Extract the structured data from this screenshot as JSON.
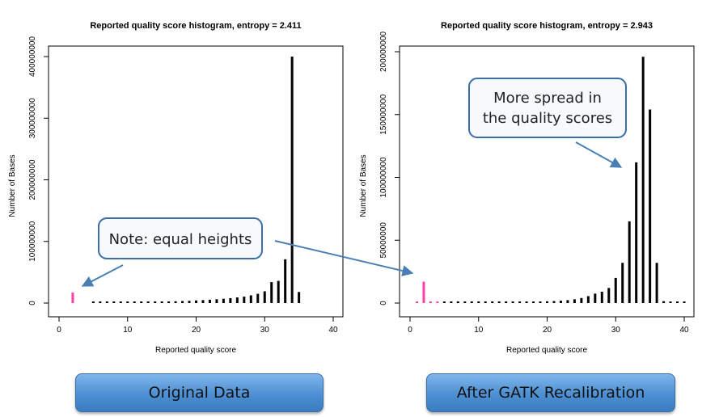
{
  "colors": {
    "bar": "#000000",
    "highlight_bar": "#ff3fa4",
    "callout_border": "#3a6ea5",
    "arrow": "#4a7fb5",
    "caption_fill": "#4d8fd2"
  },
  "chart_data": [
    {
      "type": "bar",
      "title": "Reported quality score histogram, entropy =  2.411",
      "xlabel": "Reported quality score",
      "ylabel": "Number of Bases",
      "xlim": [
        0,
        40
      ],
      "ylim": [
        0,
        400000000
      ],
      "xticks": [
        0,
        10,
        20,
        30,
        40
      ],
      "yticks": [
        0,
        100000000,
        200000000,
        300000000,
        400000000
      ],
      "xtick_labels": [
        "0",
        "10",
        "20",
        "30",
        "40"
      ],
      "ytick_labels": [
        "0",
        "100000000",
        "200000000",
        "300000000",
        "400000000"
      ],
      "grid": false,
      "highlight": [
        2
      ],
      "x": [
        2,
        5,
        6,
        7,
        8,
        9,
        10,
        11,
        12,
        13,
        14,
        15,
        16,
        17,
        18,
        19,
        20,
        21,
        22,
        23,
        24,
        25,
        26,
        27,
        28,
        29,
        30,
        31,
        32,
        33,
        34,
        35
      ],
      "values": [
        17000000,
        500000,
        600000,
        700000,
        800000,
        900000,
        1000000,
        1100000,
        1300000,
        1500000,
        1800000,
        2100000,
        2500000,
        2900000,
        3300000,
        3700000,
        4200000,
        4800000,
        5400000,
        6100000,
        7000000,
        8000000,
        9200000,
        10500000,
        12500000,
        15000000,
        19000000,
        34000000,
        36000000,
        71000000,
        400000000,
        18000000
      ]
    },
    {
      "type": "bar",
      "title": "Reported quality score histogram, entropy =  2.943",
      "xlabel": "Reported quality score",
      "ylabel": "Number of Bases",
      "xlim": [
        0,
        40
      ],
      "ylim": [
        0,
        200000000
      ],
      "xticks": [
        0,
        10,
        20,
        30,
        40
      ],
      "yticks": [
        0,
        50000000,
        100000000,
        150000000,
        200000000
      ],
      "xtick_labels": [
        "0",
        "10",
        "20",
        "30",
        "40"
      ],
      "ytick_labels": [
        "0",
        "50000000",
        "100000000",
        "150000000",
        "200000000"
      ],
      "grid": false,
      "highlight": [
        1,
        2,
        3,
        4
      ],
      "x": [
        1,
        2,
        3,
        4,
        5,
        6,
        7,
        8,
        9,
        10,
        11,
        12,
        13,
        14,
        15,
        16,
        17,
        18,
        19,
        20,
        21,
        22,
        23,
        24,
        25,
        26,
        27,
        28,
        29,
        30,
        31,
        32,
        33,
        34,
        35,
        36,
        37,
        38,
        39,
        40
      ],
      "values": [
        200000,
        17000000,
        300000,
        250000,
        150000,
        200000,
        250000,
        300000,
        350000,
        400000,
        450000,
        500000,
        550000,
        600000,
        700000,
        800000,
        900000,
        1000000,
        1200000,
        1400000,
        1600000,
        1900000,
        2300000,
        3000000,
        4000000,
        5500000,
        7500000,
        9000000,
        12000000,
        20000000,
        32000000,
        65000000,
        112000000,
        196000000,
        154000000,
        32000000,
        1500000,
        400000,
        300000,
        300000
      ]
    }
  ],
  "callouts": {
    "left": "Note: equal heights",
    "right_line1": "More spread in",
    "right_line2": "the quality scores"
  },
  "captions": {
    "left": "Original Data",
    "right": "After GATK Recalibration"
  }
}
